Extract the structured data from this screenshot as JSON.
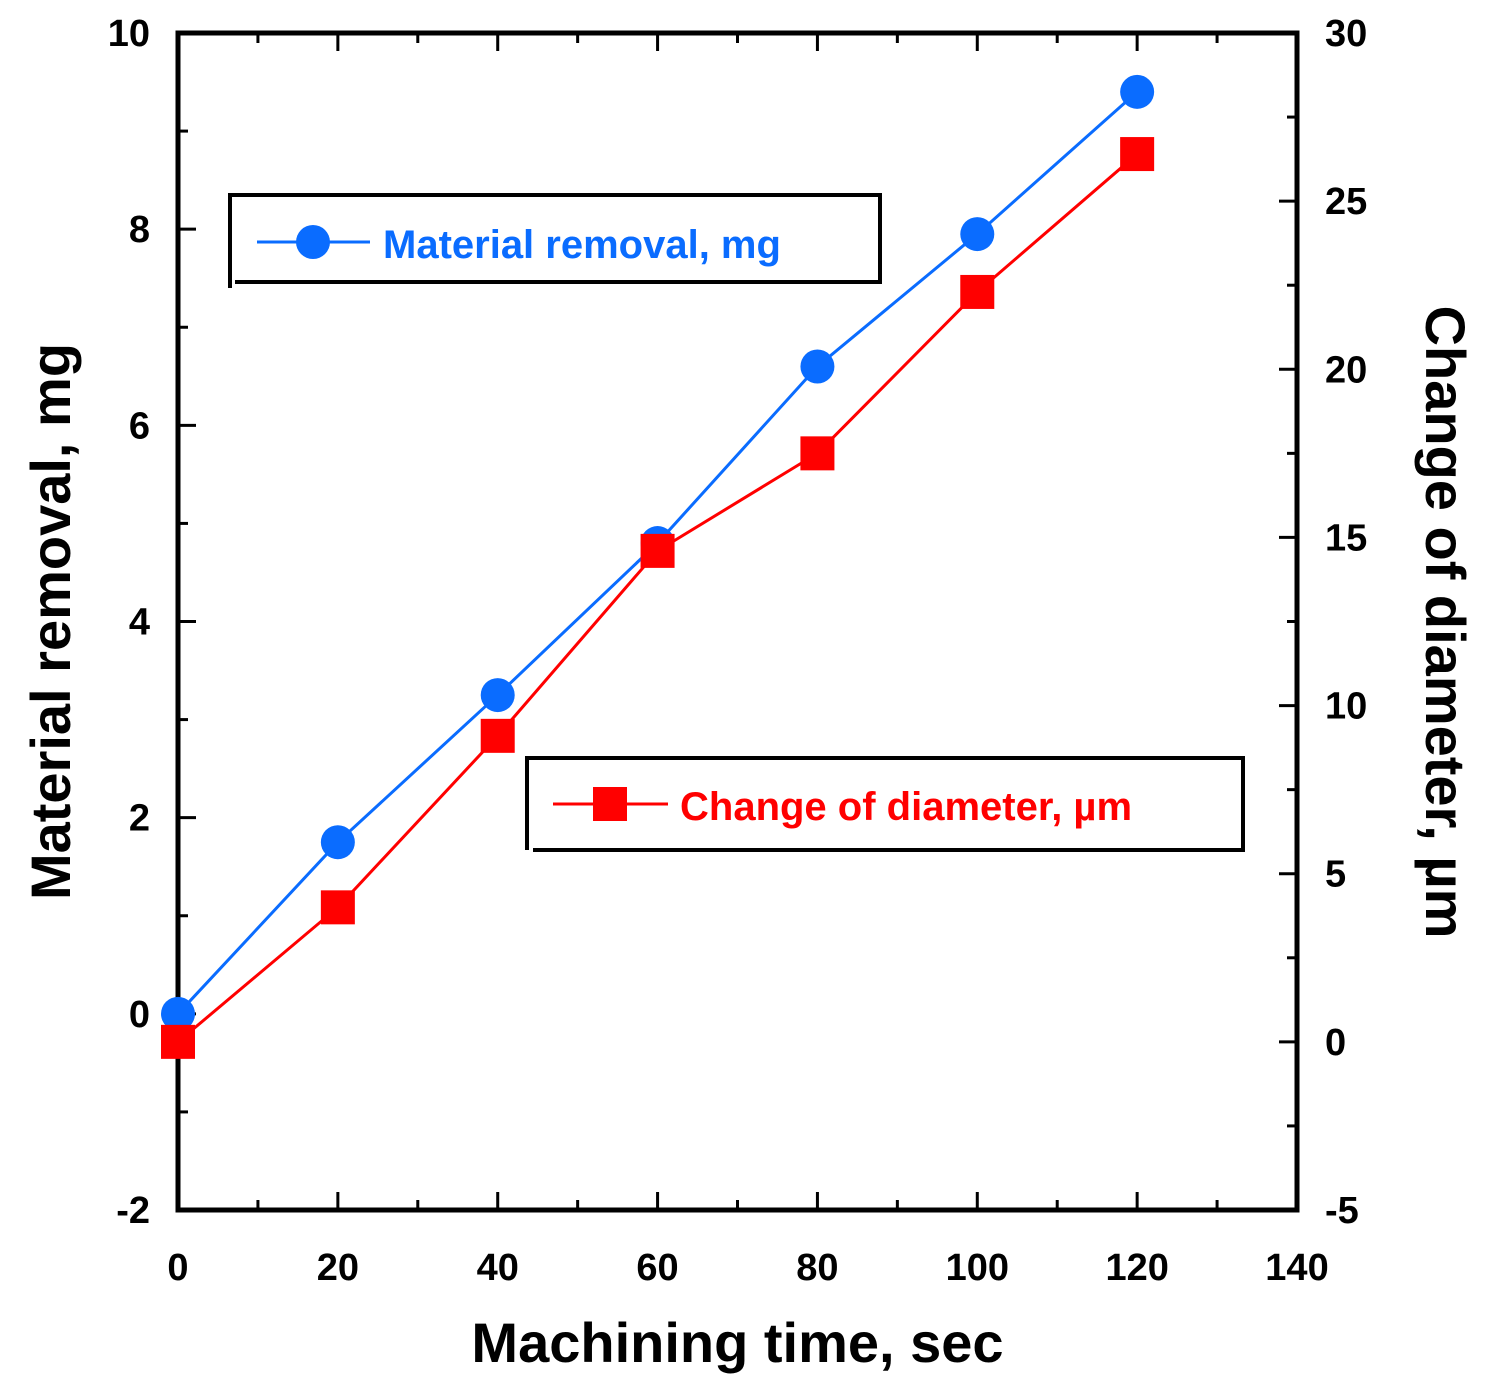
{
  "chart_data": {
    "type": "line",
    "title": "",
    "xlabel": "Machining time, sec",
    "ylabel": "Material removal, mg",
    "y2label": "Change of diameter, µm",
    "xlim": [
      0,
      140
    ],
    "ylim": [
      -2,
      10
    ],
    "y2lim": [
      -5,
      30
    ],
    "x_ticks": [
      "0",
      "20",
      "40",
      "60",
      "80",
      "100",
      "120",
      "140"
    ],
    "y_ticks": [
      "-2",
      "0",
      "2",
      "4",
      "6",
      "8",
      "10"
    ],
    "y2_ticks": [
      "-5",
      "0",
      "5",
      "10",
      "15",
      "20",
      "25",
      "30"
    ],
    "grid": false,
    "series": [
      {
        "name": "Material removal, mg",
        "axis": "left",
        "marker": "circle",
        "color": "#0a6cff",
        "x": [
          0,
          20,
          40,
          60,
          80,
          100,
          120
        ],
        "values": [
          0.0,
          1.75,
          3.25,
          4.8,
          6.6,
          7.95,
          9.4
        ]
      },
      {
        "name": "Change of diameter, µm",
        "axis": "right",
        "marker": "square",
        "color": "#ff0000",
        "x": [
          0,
          20,
          40,
          60,
          80,
          100,
          120
        ],
        "values": [
          0.0,
          4.0,
          9.1,
          14.6,
          17.5,
          22.3,
          26.4
        ]
      }
    ]
  }
}
